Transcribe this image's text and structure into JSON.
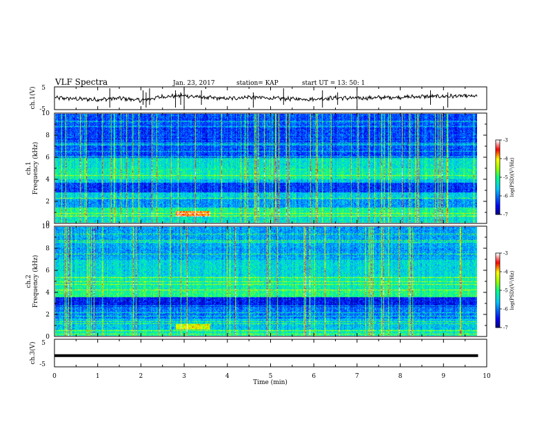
{
  "header": {
    "title": "VLF Spectra",
    "date": "Jan. 23, 2017",
    "station": "station= KAP",
    "start": "start UT =  13: 50: 1"
  },
  "colorbar": {
    "label": "log(PSD)(V²/Hz)",
    "ticks": [
      "-3",
      "-4",
      "-5",
      "-6",
      "-7"
    ],
    "range": [
      -7,
      -3
    ],
    "colors": [
      "#000090",
      "#0000ff",
      "#00ffff",
      "#00ff00",
      "#ffff00",
      "#ff0000",
      "#ffffff"
    ]
  },
  "chart_data": [
    {
      "type": "line",
      "ylabel": "ch.1(V)",
      "ylim": [
        -5,
        5
      ],
      "yticks": [
        "5",
        "-5"
      ],
      "xlim": [
        0,
        10
      ],
      "description_x_units": "min",
      "x": [
        0,
        0.5,
        1,
        1.5,
        2,
        2.5,
        3,
        3.5,
        4,
        4.5,
        5,
        5.5,
        6,
        6.5,
        7,
        7.5,
        8,
        8.5,
        9,
        9.5,
        9.8
      ],
      "y": [
        0.2,
        -0.3,
        -0.6,
        0.0,
        -1.0,
        0.8,
        1.2,
        0.3,
        -0.2,
        0.6,
        0.0,
        -0.3,
        -0.4,
        0.2,
        0.0,
        0.3,
        0.5,
        0.8,
        0.9,
        1.0,
        0.9
      ]
    },
    {
      "type": "heatmap",
      "ylabel": "ch.1\nFrequency (kHz)",
      "ylim": [
        0,
        10
      ],
      "yticks": [
        "0",
        "2",
        "4",
        "6",
        "8",
        "10"
      ],
      "xlim": [
        0,
        9.8
      ]
    },
    {
      "type": "heatmap",
      "ylabel": "ch.2\nFrequency (kHz)",
      "ylim": [
        0,
        10
      ],
      "yticks": [
        "0",
        "2",
        "4",
        "6",
        "8",
        "10"
      ],
      "xlim": [
        0,
        9.8
      ]
    },
    {
      "type": "line",
      "ylabel": "ch.3(V)",
      "ylim": [
        -5,
        5
      ],
      "yticks": [
        "5",
        "-5"
      ],
      "xlim": [
        0,
        10
      ],
      "x": [
        0,
        9.8
      ],
      "y": [
        -1.0,
        -1.0
      ]
    }
  ],
  "xaxis": {
    "label": "Time (min)",
    "ticks": [
      "0",
      "1",
      "2",
      "3",
      "4",
      "5",
      "6",
      "7",
      "8",
      "9",
      "10"
    ],
    "range": [
      0,
      10
    ]
  }
}
